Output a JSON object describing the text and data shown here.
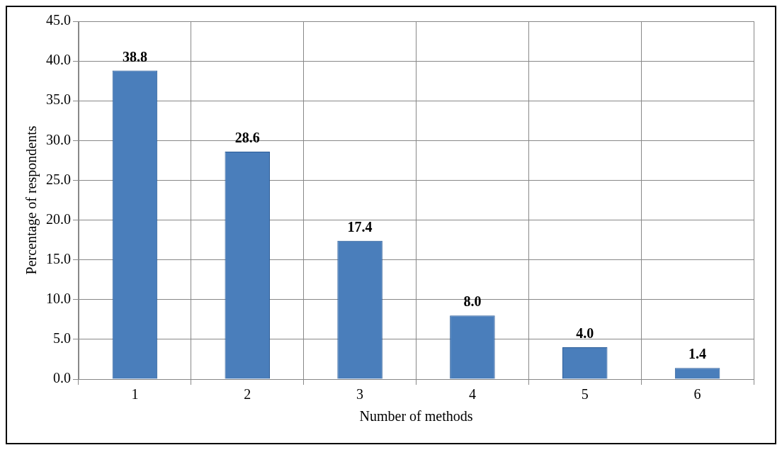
{
  "chart_data": {
    "type": "bar",
    "xlabel": "Number of methods",
    "ylabel": "Percentage of respondents",
    "categories": [
      "1",
      "2",
      "3",
      "4",
      "5",
      "6"
    ],
    "values": [
      38.8,
      28.6,
      17.4,
      8.0,
      4.0,
      1.4
    ],
    "value_labels": [
      "38.8",
      "28.6",
      "17.4",
      "8.0",
      "4.0",
      "1.4"
    ],
    "color": "#4a7ebb",
    "ylim": [
      0,
      45
    ],
    "yticks": [
      {
        "value": 0,
        "label": "0.0"
      },
      {
        "value": 5,
        "label": "5.0"
      },
      {
        "value": 10,
        "label": "10.0"
      },
      {
        "value": 15,
        "label": "15.0"
      },
      {
        "value": 20,
        "label": "20.0"
      },
      {
        "value": 25,
        "label": "25.0"
      },
      {
        "value": 30,
        "label": "30.0"
      },
      {
        "value": 35,
        "label": "35.0"
      },
      {
        "value": 40,
        "label": "40.0"
      },
      {
        "value": 45,
        "label": "45.0"
      }
    ],
    "grid": true,
    "legend": false
  }
}
